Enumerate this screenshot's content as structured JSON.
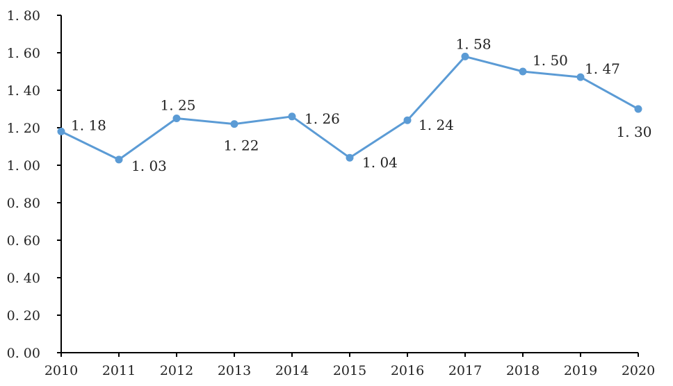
{
  "chart_data": {
    "type": "line",
    "title": "",
    "xlabel": "",
    "ylabel": "",
    "categories": [
      "2010",
      "2011",
      "2012",
      "2013",
      "2014",
      "2015",
      "2016",
      "2017",
      "2018",
      "2019",
      "2020"
    ],
    "series": [
      {
        "values": [
          1.18,
          1.03,
          1.25,
          1.22,
          1.26,
          1.04,
          1.24,
          1.58,
          1.5,
          1.47,
          1.3
        ],
        "labels": [
          "1. 18",
          "1. 03",
          "1. 25",
          "1. 22",
          "1. 26",
          "1. 04",
          "1. 24",
          "1. 58",
          "1. 50",
          "1. 47",
          "1. 30"
        ],
        "color": "#5B9BD5"
      }
    ],
    "y_ticks": [
      {
        "value": 0.0,
        "label": "0. 00"
      },
      {
        "value": 0.2,
        "label": "0. 20"
      },
      {
        "value": 0.4,
        "label": "0. 40"
      },
      {
        "value": 0.6,
        "label": "0. 60"
      },
      {
        "value": 0.8,
        "label": "0. 80"
      },
      {
        "value": 1.0,
        "label": "1. 00"
      },
      {
        "value": 1.2,
        "label": "1. 20"
      },
      {
        "value": 1.4,
        "label": "1. 40"
      },
      {
        "value": 1.6,
        "label": "1. 60"
      },
      {
        "value": 1.8,
        "label": "1. 80"
      }
    ],
    "ylim": [
      0,
      1.8
    ],
    "grid": false,
    "legend": "none"
  }
}
